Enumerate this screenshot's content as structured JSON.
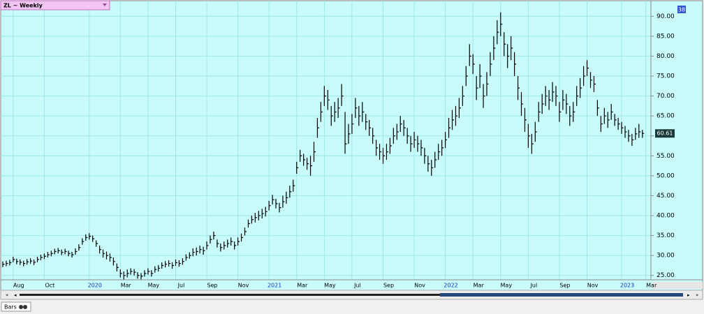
{
  "chart_data": {
    "type": "hlc",
    "title": "ZL ~ Weekly",
    "badge": "38",
    "tab": "Bars",
    "ylim": [
      23.9,
      93.9
    ],
    "yticks": [
      {
        "value": 25,
        "label": "25.00"
      },
      {
        "value": 30,
        "label": "30.00"
      },
      {
        "value": 35,
        "label": "35.00"
      },
      {
        "value": 40,
        "label": "40.00"
      },
      {
        "value": 45,
        "label": "45.00"
      },
      {
        "value": 50,
        "label": "50.00"
      },
      {
        "value": 55,
        "label": "55.00"
      },
      {
        "value": 60,
        "label": "60.00"
      },
      {
        "value": 65,
        "label": "65.00"
      },
      {
        "value": 70,
        "label": "70.00"
      },
      {
        "value": 75,
        "label": "75.00"
      },
      {
        "value": 80,
        "label": "80.00"
      },
      {
        "value": 85,
        "label": "85.00"
      },
      {
        "value": 90,
        "label": "90.00"
      }
    ],
    "grid": true,
    "color": "#000000",
    "categories": [
      null,
      null,
      null,
      "Aug",
      null,
      null,
      null,
      null,
      null,
      null,
      null,
      null,
      "Oct",
      null,
      null,
      null,
      null,
      null,
      null,
      null,
      null,
      null,
      null,
      null,
      null,
      "2020",
      null,
      null,
      null,
      null,
      null,
      null,
      null,
      null,
      "Mar",
      null,
      null,
      null,
      null,
      null,
      null,
      null,
      "May",
      null,
      null,
      null,
      null,
      null,
      null,
      null,
      "Jul",
      null,
      null,
      null,
      null,
      null,
      null,
      null,
      null,
      "Sep",
      null,
      null,
      null,
      null,
      null,
      null,
      null,
      null,
      "Nov",
      null,
      null,
      null,
      null,
      null,
      null,
      null,
      null,
      "2021",
      null,
      null,
      null,
      null,
      null,
      null,
      null,
      "Mar",
      null,
      null,
      null,
      null,
      null,
      null,
      null,
      "May",
      null,
      null,
      null,
      null,
      null,
      null,
      null,
      "Jul",
      null,
      null,
      null,
      null,
      null,
      null,
      null,
      null,
      "Sep",
      null,
      null,
      null,
      null,
      null,
      null,
      null,
      null,
      "Nov",
      null,
      null,
      null,
      null,
      null,
      null,
      null,
      null,
      "2022",
      null,
      null,
      null,
      null,
      null,
      null,
      null,
      "Mar",
      null,
      null,
      null,
      null,
      null,
      null,
      null,
      "May",
      null,
      null,
      null,
      null,
      null,
      null,
      null,
      "Jul",
      null,
      null,
      null,
      null,
      null,
      null,
      null,
      null,
      "Sep",
      null,
      null,
      null,
      null,
      null,
      null,
      null,
      "Nov",
      null,
      null,
      null,
      null,
      null,
      null,
      null,
      null,
      null,
      "2023",
      null,
      null,
      null,
      null,
      null,
      null,
      "Mar"
    ],
    "high": [
      28.5,
      28.7,
      28.9,
      29.7,
      29.2,
      29.0,
      28.7,
      29.1,
      29.3,
      29.0,
      29.7,
      30.2,
      30.5,
      30.9,
      31.2,
      31.7,
      31.9,
      31.5,
      31.7,
      31.2,
      30.9,
      31.8,
      32.8,
      34.3,
      35.3,
      35.6,
      35.0,
      33.8,
      32.5,
      31.5,
      31.0,
      30.5,
      29.5,
      28.0,
      26.5,
      26.0,
      26.5,
      26.8,
      26.6,
      25.8,
      25.6,
      26.3,
      26.8,
      26.3,
      27.3,
      27.6,
      28.3,
      28.6,
      28.8,
      28.3,
      29.0,
      28.8,
      29.3,
      30.3,
      30.8,
      31.8,
      32.0,
      32.5,
      32.2,
      33.5,
      35.0,
      36.0,
      34.0,
      33.0,
      33.5,
      34.0,
      34.5,
      33.5,
      34.5,
      35.5,
      37.0,
      39.0,
      40.0,
      40.7,
      41.2,
      41.7,
      42.2,
      43.7,
      45.2,
      44.2,
      43.2,
      45.0,
      46.0,
      47.5,
      49.0,
      53.5,
      56.5,
      55.5,
      54.5,
      55.0,
      58.5,
      64.5,
      68.5,
      72.5,
      71.5,
      67.5,
      68.5,
      69.5,
      73.0,
      66.0,
      63.0,
      65.5,
      69.5,
      67.5,
      68.5,
      65.5,
      64.0,
      62.0,
      59.0,
      58.0,
      57.0,
      58.0,
      59.5,
      62.0,
      63.0,
      65.0,
      64.0,
      62.0,
      60.0,
      61.0,
      60.0,
      59.0,
      57.0,
      55.0,
      54.0,
      56.0,
      58.0,
      59.0,
      61.0,
      64.5,
      66.5,
      67.5,
      69.5,
      72.5,
      77.5,
      83.0,
      80.5,
      75.0,
      78.0,
      73.0,
      76.0,
      81.0,
      85.0,
      89.0,
      91.0,
      86.0,
      83.0,
      85.0,
      81.0,
      75.0,
      71.0,
      67.0,
      63.0,
      60.5,
      63.5,
      68.5,
      70.5,
      72.5,
      71.5,
      73.5,
      72.5,
      68.5,
      71.5,
      70.5,
      67.5,
      68.5,
      72.5,
      74.5,
      77.5,
      79.0,
      76.0,
      75.0,
      69.0,
      65.0,
      67.0,
      66.0,
      68.0,
      65.5,
      64.5,
      63.5,
      62.5,
      61.5,
      60.5,
      62.0,
      63.0,
      61.5,
      null
    ],
    "low": [
      27.1,
      27.3,
      27.5,
      28.3,
      27.8,
      27.6,
      27.3,
      27.7,
      27.9,
      27.6,
      28.3,
      28.8,
      29.1,
      29.5,
      29.8,
      30.3,
      30.5,
      30.1,
      30.3,
      29.8,
      29.5,
      30.2,
      31.2,
      32.7,
      33.7,
      34.0,
      33.4,
      32.2,
      30.5,
      29.5,
      29.0,
      28.5,
      27.5,
      26.0,
      24.5,
      24.0,
      24.5,
      25.2,
      25.0,
      24.2,
      24.0,
      24.7,
      25.2,
      24.7,
      25.7,
      26.0,
      26.7,
      27.0,
      27.2,
      26.7,
      27.4,
      27.2,
      27.7,
      28.7,
      29.2,
      29.8,
      30.0,
      30.5,
      30.2,
      31.5,
      33.0,
      34.0,
      32.0,
      31.0,
      31.5,
      32.0,
      32.5,
      31.5,
      32.5,
      33.5,
      35.0,
      37.0,
      38.0,
      38.3,
      38.8,
      39.3,
      39.8,
      41.3,
      42.8,
      41.8,
      40.8,
      42.0,
      43.0,
      44.5,
      46.0,
      50.5,
      53.5,
      52.5,
      51.5,
      50.0,
      53.5,
      59.5,
      63.5,
      67.5,
      66.5,
      62.5,
      63.5,
      64.5,
      67.5,
      55.5,
      58.0,
      60.5,
      64.5,
      62.5,
      63.5,
      61.5,
      60.0,
      58.0,
      55.0,
      54.0,
      53.0,
      54.0,
      55.5,
      58.0,
      59.0,
      61.0,
      60.0,
      58.0,
      56.0,
      57.0,
      56.0,
      55.0,
      53.0,
      51.0,
      50.0,
      52.0,
      54.0,
      55.0,
      57.0,
      59.5,
      61.5,
      62.5,
      64.5,
      67.5,
      72.5,
      77.5,
      75.5,
      69.0,
      72.0,
      67.0,
      70.0,
      75.0,
      79.0,
      83.0,
      85.0,
      80.0,
      77.0,
      79.0,
      75.0,
      69.0,
      65.0,
      61.0,
      57.0,
      55.5,
      58.5,
      63.5,
      65.5,
      67.5,
      66.5,
      68.5,
      67.5,
      63.5,
      66.5,
      65.5,
      62.5,
      63.5,
      67.5,
      69.5,
      72.5,
      75.0,
      72.0,
      71.0,
      65.0,
      61.0,
      63.0,
      62.0,
      64.0,
      62.5,
      61.5,
      60.5,
      59.5,
      58.5,
      57.5,
      59.0,
      59.5,
      59.5,
      null
    ],
    "close": [
      27.8,
      28.0,
      28.2,
      29.0,
      28.5,
      28.3,
      28.0,
      28.4,
      28.6,
      28.3,
      29.0,
      29.5,
      29.8,
      30.2,
      30.5,
      31.0,
      31.2,
      30.8,
      31.0,
      30.5,
      30.2,
      31.0,
      32.0,
      33.5,
      34.5,
      34.8,
      34.2,
      33.0,
      31.5,
      30.5,
      30.0,
      29.5,
      28.5,
      27.0,
      25.5,
      25.0,
      25.5,
      26.0,
      25.8,
      25.0,
      24.8,
      25.5,
      26.0,
      25.5,
      26.5,
      26.8,
      27.5,
      27.8,
      28.0,
      27.5,
      28.2,
      28.0,
      28.5,
      29.5,
      30.0,
      30.8,
      31.0,
      31.5,
      31.2,
      32.5,
      34.0,
      35.0,
      33.0,
      32.0,
      32.5,
      33.0,
      33.5,
      32.5,
      33.5,
      34.5,
      36.0,
      38.0,
      39.0,
      39.5,
      40.0,
      40.5,
      41.0,
      42.5,
      44.0,
      43.0,
      42.0,
      43.5,
      44.5,
      46.0,
      47.5,
      52.0,
      55.0,
      54.0,
      53.0,
      52.5,
      56.0,
      62.0,
      66.0,
      70.0,
      69.0,
      65.0,
      66.0,
      67.0,
      70.0,
      58.0,
      60.5,
      63.0,
      67.0,
      65.0,
      66.0,
      63.5,
      62.0,
      60.0,
      57.0,
      56.0,
      55.0,
      56.0,
      57.5,
      60.0,
      61.0,
      63.0,
      62.0,
      60.0,
      58.0,
      59.0,
      58.0,
      57.0,
      55.0,
      53.0,
      52.0,
      54.0,
      56.0,
      57.0,
      59.0,
      62.0,
      64.0,
      65.0,
      67.0,
      70.0,
      75.0,
      80.0,
      78.0,
      72.0,
      75.0,
      70.0,
      73.0,
      78.0,
      82.0,
      86.0,
      88.0,
      83.0,
      80.0,
      82.0,
      78.0,
      72.0,
      68.0,
      64.0,
      60.0,
      58.0,
      61.0,
      66.0,
      68.0,
      70.0,
      69.0,
      71.0,
      70.0,
      66.0,
      69.0,
      68.0,
      65.0,
      66.0,
      70.0,
      72.0,
      75.0,
      77.0,
      74.0,
      73.0,
      67.0,
      63.0,
      65.0,
      64.0,
      66.0,
      64.0,
      63.0,
      62.0,
      61.0,
      60.0,
      59.0,
      60.5,
      61.0,
      60.61,
      null
    ]
  }
}
